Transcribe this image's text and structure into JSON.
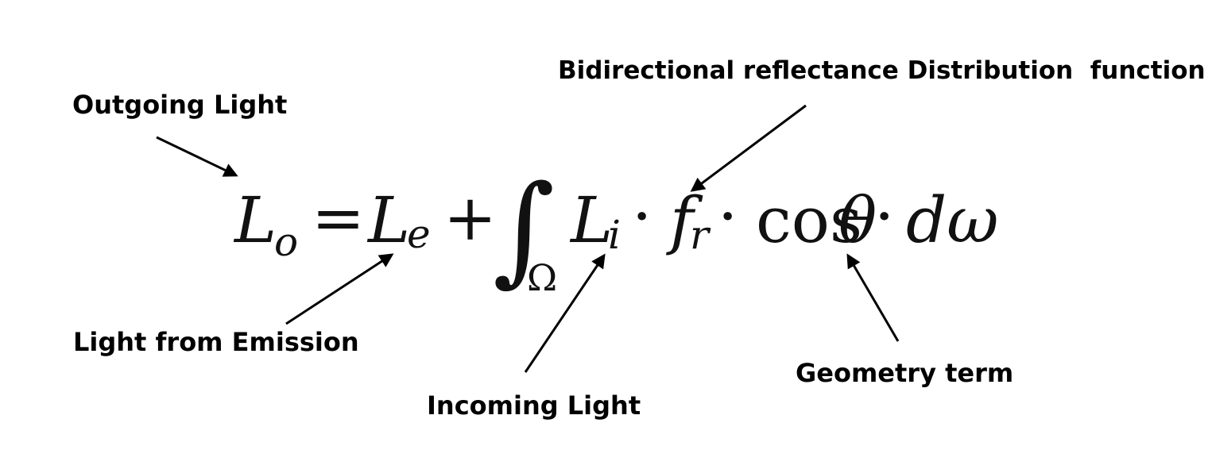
{
  "labels": {
    "outgoing": "Outgoing Light",
    "brdf": "Bidirectional reflectance Distribution  function",
    "emission": "Light from Emission",
    "incoming": "Incoming Light",
    "geometry": "Geometry term"
  },
  "equation": {
    "lo_base": "L",
    "lo_sub": "o",
    "equals": "=",
    "le_base": "L",
    "le_sub": "e",
    "plus": "+",
    "integral": "∫",
    "domain": "Ω",
    "li_base": "L",
    "li_sub": "i",
    "dot1": "·",
    "fr_base": "f",
    "fr_sub": "r",
    "dot2": "·",
    "cos": "cos",
    "theta": "θ",
    "dot3": "·",
    "domega": "dω"
  },
  "colors": {
    "text": "#000000",
    "arrow": "#000000",
    "background": "#ffffff"
  }
}
